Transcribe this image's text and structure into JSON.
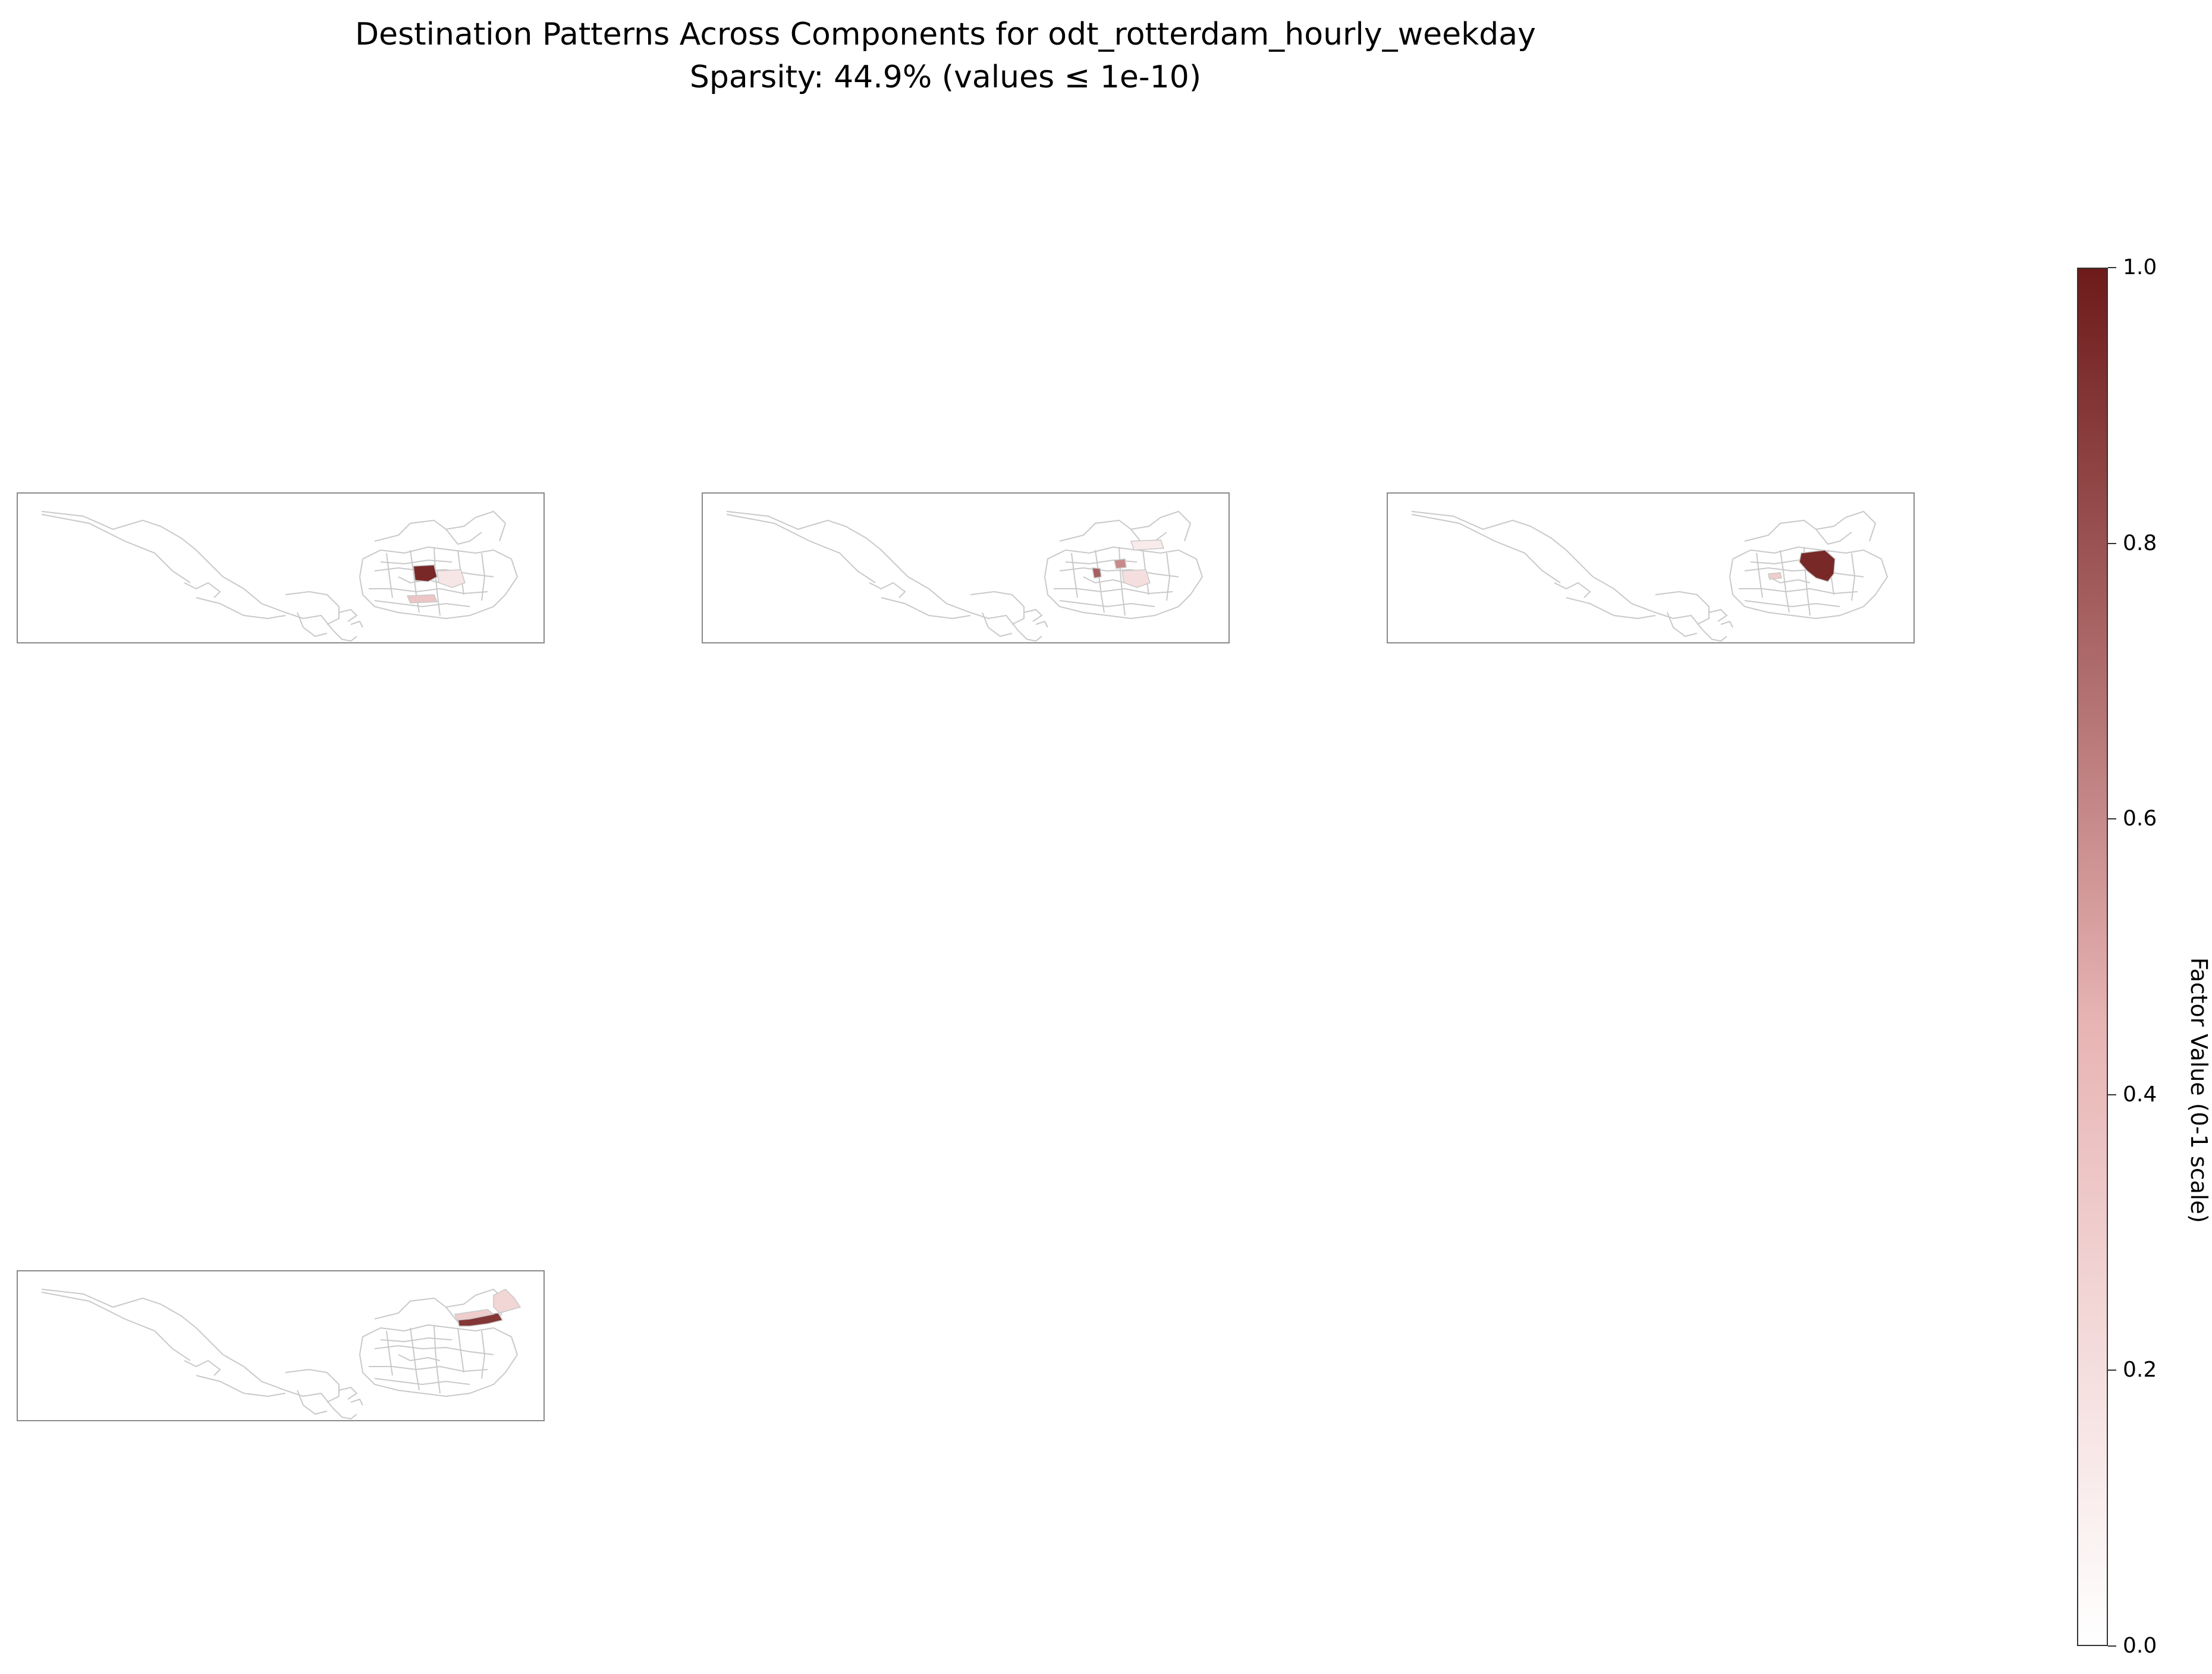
{
  "title": {
    "line1": "Destination Patterns Across Components for odt_rotterdam_hourly_weekday",
    "line2": "Sparsity: 44.9% (values ≤ 1e-10)"
  },
  "colors": {
    "outline": "#c9c9c9",
    "frame": "#8a8a8a",
    "cmap_low": "#ffffff",
    "cmap_mid": "#e8b4b4",
    "cmap_high": "#6e1a1a"
  },
  "colorbar": {
    "label": "Factor Value (0-1 scale)",
    "ticks": [
      "0.0",
      "0.2",
      "0.4",
      "0.6",
      "0.8",
      "1.0"
    ],
    "range": [
      0,
      1
    ]
  },
  "panels": [
    {
      "highlights": [
        {
          "region": "centre",
          "value": 0.95
        },
        {
          "region": "east-centre",
          "value": 0.15
        },
        {
          "region": "south-centre",
          "value": 0.35
        }
      ]
    },
    {
      "highlights": [
        {
          "region": "centre-small",
          "value": 0.75
        },
        {
          "region": "north-east-small",
          "value": 0.6
        },
        {
          "region": "east-centre",
          "value": 0.2
        },
        {
          "region": "north-east",
          "value": 0.12
        }
      ]
    },
    {
      "highlights": [
        {
          "region": "north-east-large",
          "value": 0.95
        },
        {
          "region": "south-centre-small",
          "value": 0.3
        }
      ]
    },
    {
      "highlights": [
        {
          "region": "far-east-strip",
          "value": 0.9
        },
        {
          "region": "far-east-upper",
          "value": 0.3
        },
        {
          "region": "far-east-north",
          "value": 0.25
        }
      ]
    }
  ]
}
